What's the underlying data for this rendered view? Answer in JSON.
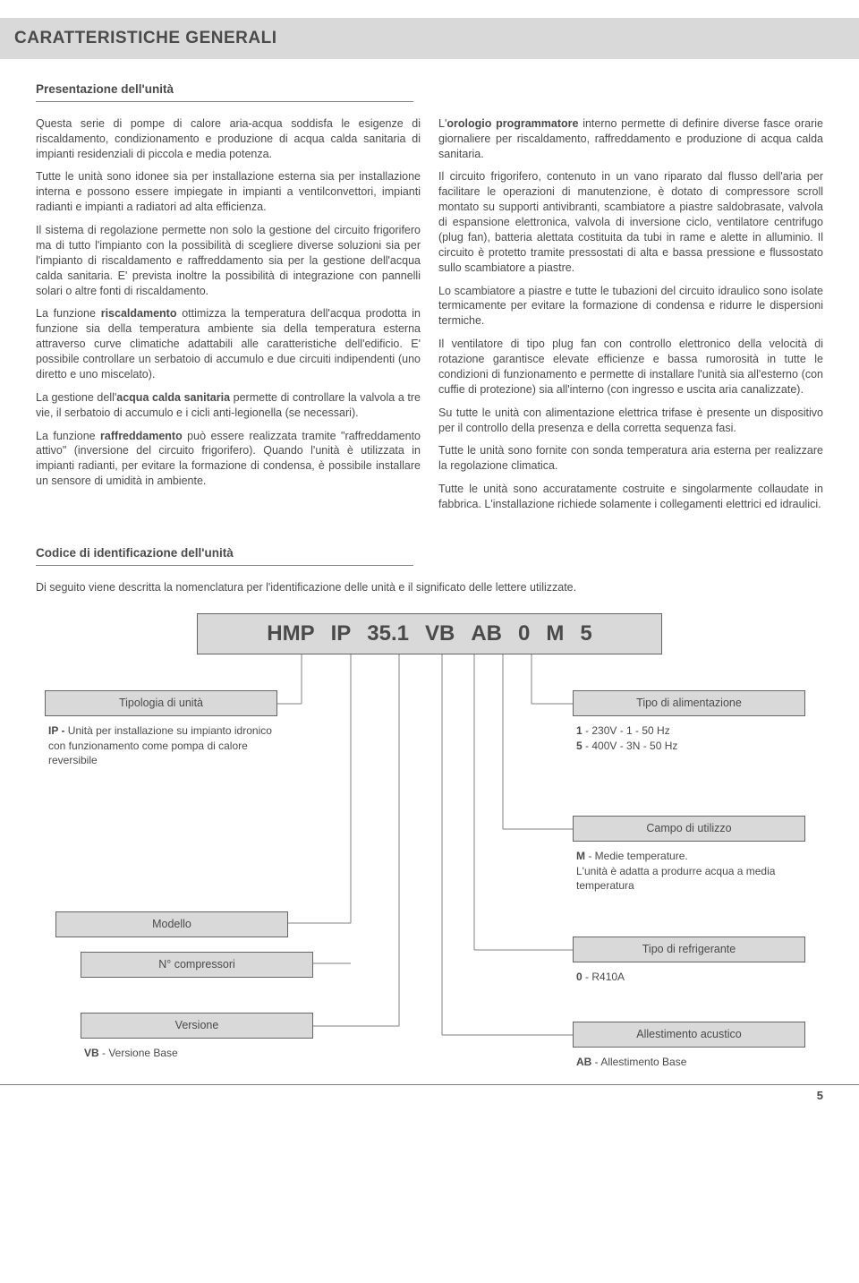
{
  "header": {
    "title": "CARATTERISTICHE GENERALI"
  },
  "presentation": {
    "heading": "Presentazione dell'unità",
    "left_html": "Questa serie di pompe di calore aria-acqua soddisfa le esigenze di riscaldamento, condizionamento e produzione di acqua calda sanitaria di impianti residenziali di piccola e media potenza.|Tutte le unità sono idonee sia per installazione esterna sia per installazione interna e possono essere impiegate in impianti a ventilconvettori, impianti radianti e impianti a radiatori ad alta efficienza.|Il sistema di regolazione permette non solo la gestione del circuito frigorifero ma di tutto l'impianto con la possibilità di scegliere diverse soluzioni sia per l'impianto di riscaldamento e raffreddamento sia per la gestione dell'acqua calda sanitaria. E' prevista inoltre la possibilità di integrazione con pannelli solari o altre fonti di riscaldamento.|La funzione <b>riscaldamento</b> ottimizza la temperatura dell'acqua prodotta in funzione sia della temperatura ambiente sia della temperatura esterna attraverso curve climatiche adattabili alle caratteristiche dell'edificio. E' possibile controllare un serbatoio di accumulo e due circuiti indipendenti (uno diretto e uno miscelato).|La gestione dell'<b>acqua calda sanitaria</b> permette di controllare la valvola a tre vie, il serbatoio di accumulo e i cicli anti-legionella (se necessari).|La funzione <b>raffreddamento</b> può essere realizzata tramite \"raffreddamento attivo\" (inversione del circuito frigorifero). Quando l'unità è utilizzata in impianti radianti, per evitare la formazione di condensa, è possibile installare un sensore di umidità in ambiente.",
    "right_html": "L'<b>orologio programmatore</b> interno permette di definire diverse fasce orarie giornaliere per riscaldamento, raffreddamento e produzione di acqua calda sanitaria.|Il circuito frigorifero, contenuto in un vano riparato dal flusso dell'aria per facilitare le operazioni di manutenzione, è dotato di compressore scroll montato su supporti antivibranti, scambiatore a piastre saldobrasate, valvola di espansione elettronica, valvola di inversione ciclo, ventilatore centrifugo (plug fan), batteria alettata costituita da tubi in rame e alette in alluminio. Il circuito è protetto tramite pressostati di alta e bassa pressione e flussostato sullo scambiatore a piastre.|Lo scambiatore a piastre e tutte le tubazioni del circuito idraulico sono isolate termicamente per evitare la formazione di condensa e ridurre le dispersioni termiche.|Il ventilatore di tipo plug fan con controllo elettronico della velocità di rotazione garantisce elevate efficienze e bassa rumorosità in tutte le condizioni di funzionamento e permette di installare l'unità sia all'esterno (con cuffie di protezione) sia all'interno (con ingresso e uscita aria canalizzate).|Su tutte le unità con alimentazione elettrica trifase è presente un dispositivo per il controllo della presenza e della corretta sequenza fasi.|Tutte le unità sono fornite con sonda temperatura aria esterna per realizzare la regolazione climatica.|Tutte le unità sono accuratamente costruite e singolarmente collaudate in fabbrica. L'installazione richiede solamente i collegamenti elettrici ed idraulici."
  },
  "identification": {
    "heading": "Codice di identificazione dell'unità",
    "intro": "Di seguito viene descritta la nomenclatura per l'identificazione delle unità e il significato delle lettere utilizzate.",
    "code_parts": [
      "HMP",
      "IP",
      "35.1",
      "VB",
      "AB",
      "0",
      "M",
      "5"
    ]
  },
  "boxes": {
    "tipologia": {
      "title": "Tipologia di unità",
      "body": "<b>IP -</b> Unità per installazione su impianto idronico con funzionamento come pompa di calore reversibile"
    },
    "alimentazione": {
      "title": "Tipo di alimentazione",
      "body": "<b>1</b>  -  230V -  1  - 50 Hz<br><b>5</b>  -  400V - 3N - 50 Hz"
    },
    "campo": {
      "title": "Campo di utilizzo",
      "body": "<b>M</b>   -   Medie temperature.<br>L'unità è adatta a produrre acqua a media temperatura"
    },
    "modello": {
      "title": "Modello",
      "body": ""
    },
    "compressori": {
      "title": "N° compressori",
      "body": ""
    },
    "refrigerante": {
      "title": "Tipo di refrigerante",
      "body": "<b>0</b>    -    R410A"
    },
    "versione": {
      "title": "Versione",
      "body": "<b>VB</b>   -   Versione Base"
    },
    "acustico": {
      "title": "Allestimento acustico",
      "body": "<b>AB</b>   -   Allestimento Base"
    }
  },
  "page_number": "5"
}
